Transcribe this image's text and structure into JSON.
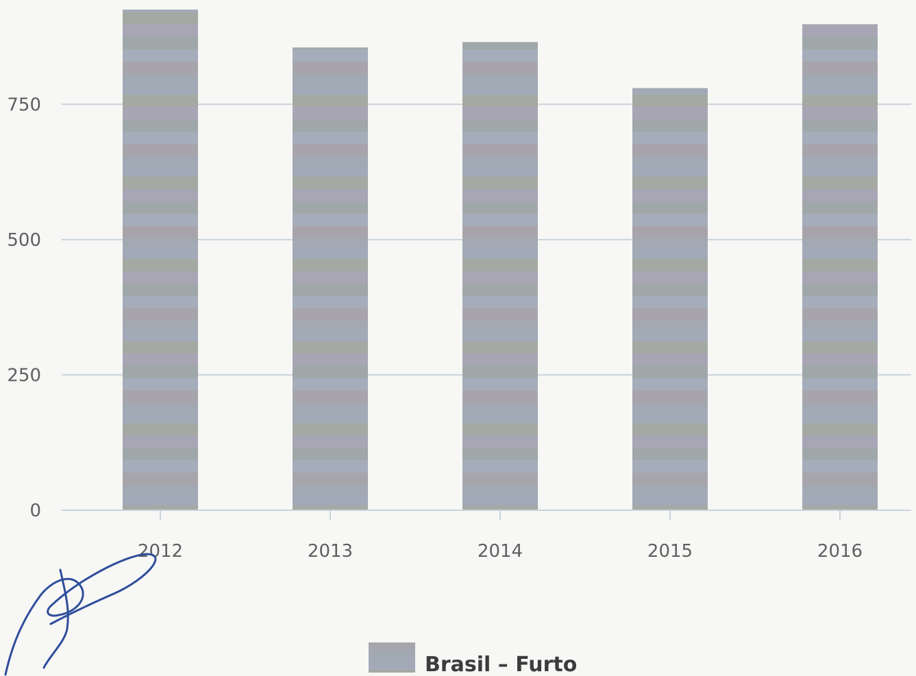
{
  "colors": {
    "background": "#f7f7f5",
    "gridline": "#c9d3db",
    "bar_fill": "#a7acb3",
    "signature": "#2e4d9b"
  },
  "chart_data": {
    "type": "bar",
    "categories": [
      "2012",
      "2013",
      "2014",
      "2015",
      "2016"
    ],
    "series": [
      {
        "name": "Brasil – Furto",
        "values": [
          925,
          855,
          865,
          780,
          898
        ]
      }
    ],
    "title": "",
    "xlabel": "",
    "ylabel": "",
    "ylim": [
      0,
      925
    ],
    "yticks": [
      0,
      250,
      500,
      750
    ],
    "grid": true,
    "legend_position": "bottom-center"
  }
}
